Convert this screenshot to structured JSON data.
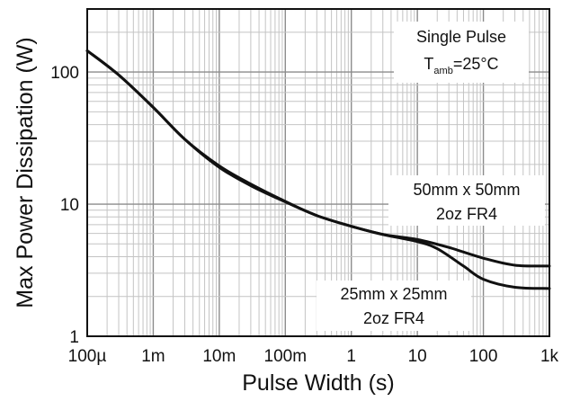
{
  "chart_data": {
    "type": "line",
    "title": "",
    "xlabel": "Pulse Width (s)",
    "ylabel": "Max Power Dissipation (W)",
    "xscale": "log",
    "yscale": "log",
    "xlim": [
      0.0001,
      1000
    ],
    "ylim": [
      1,
      300
    ],
    "grid": true,
    "x_ticks": [
      {
        "value": 0.0001,
        "label": "100µ"
      },
      {
        "value": 0.001,
        "label": "1m"
      },
      {
        "value": 0.01,
        "label": "10m"
      },
      {
        "value": 0.1,
        "label": "100m"
      },
      {
        "value": 1,
        "label": "1"
      },
      {
        "value": 10,
        "label": "10"
      },
      {
        "value": 100,
        "label": "100"
      },
      {
        "value": 1000,
        "label": "1k"
      }
    ],
    "y_ticks": [
      {
        "value": 1,
        "label": "1"
      },
      {
        "value": 10,
        "label": "10"
      },
      {
        "value": 100,
        "label": "100"
      }
    ],
    "annotation": {
      "line1": "Single Pulse",
      "t_main": "T",
      "t_sub": "amb",
      "t_rest": "=25°C"
    },
    "series": [
      {
        "name": "50mm x 50mm 2oz FR4",
        "label_line1": "50mm x 50mm",
        "label_line2": "2oz FR4",
        "color": "#111111",
        "x": [
          0.0001,
          0.0003,
          0.001,
          0.003,
          0.01,
          0.03,
          0.1,
          0.3,
          1,
          3,
          10,
          30,
          100,
          300,
          1000
        ],
        "y": [
          145,
          95,
          54,
          31,
          19.5,
          14.2,
          10.5,
          8.2,
          6.8,
          5.9,
          5.4,
          4.7,
          3.9,
          3.45,
          3.4
        ]
      },
      {
        "name": "25mm x 25mm 2oz FR4",
        "label_line1": "25mm x 25mm",
        "label_line2": "2oz FR4",
        "color": "#111111",
        "x": [
          0.0001,
          0.0003,
          0.001,
          0.003,
          0.01,
          0.03,
          0.1,
          0.3,
          1,
          3,
          10,
          20,
          50,
          100,
          300,
          1000
        ],
        "y": [
          145,
          95,
          54,
          31,
          19,
          13.8,
          10.4,
          8.2,
          6.8,
          5.9,
          5.2,
          4.6,
          3.4,
          2.7,
          2.35,
          2.3
        ]
      }
    ]
  }
}
